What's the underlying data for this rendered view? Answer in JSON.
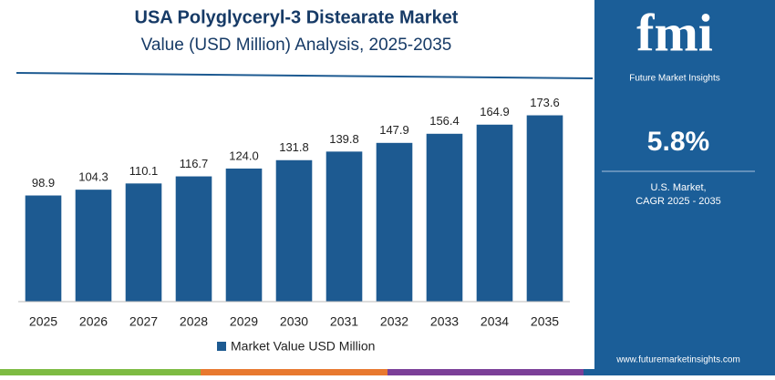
{
  "chart_data": {
    "type": "bar",
    "title": "USA Polyglyceryl-3 Distearate Market",
    "subtitle": "Value (USD Million) Analysis, 2025-2035",
    "categories": [
      "2025",
      "2026",
      "2027",
      "2028",
      "2029",
      "2030",
      "2031",
      "2032",
      "2033",
      "2034",
      "2035"
    ],
    "series": [
      {
        "name": "Market Value USD Million",
        "color": "#1d5a91",
        "values": [
          98.9,
          104.3,
          110.1,
          116.7,
          124.0,
          131.8,
          139.8,
          147.9,
          156.4,
          164.9,
          173.6
        ],
        "value_labels": [
          "98.9",
          "104.3",
          "110.1",
          "116.7",
          "124.0",
          "131.8",
          "139.8",
          "147.9",
          "156.4",
          "164.9",
          "173.6"
        ]
      }
    ],
    "ylim": [
      0,
      180
    ]
  },
  "side_panel": {
    "logo": "fmi",
    "brand": "Future Market Insights",
    "cagr": "5.8%",
    "caption_lines": [
      "U.S. Market,",
      "CAGR 2025 - 2035"
    ],
    "website": "www.futuremarketinsights.com"
  }
}
